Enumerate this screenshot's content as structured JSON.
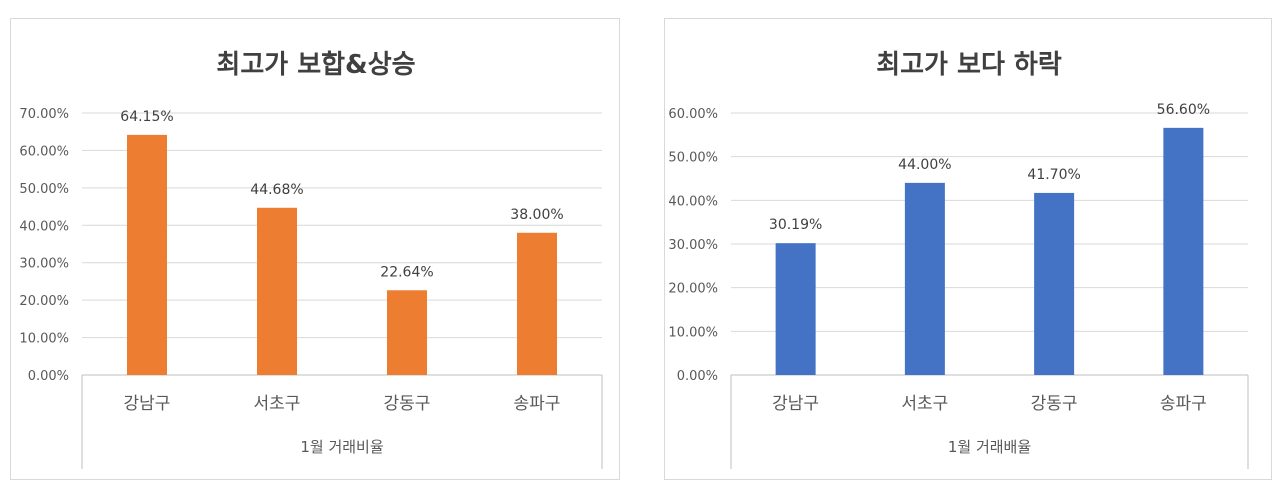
{
  "chart_data": [
    {
      "type": "bar",
      "title": "최고가 보합&상승",
      "group_label": "1월 거래비율",
      "categories": [
        "강남구",
        "서초구",
        "강동구",
        "송파구"
      ],
      "values": [
        64.15,
        44.68,
        22.64,
        38.0
      ],
      "value_labels": [
        "64.15%",
        "44.68%",
        "22.64%",
        "38.00%"
      ],
      "y_ticks": [
        "0.00%",
        "10.00%",
        "20.00%",
        "30.00%",
        "40.00%",
        "50.00%",
        "60.00%",
        "70.00%"
      ],
      "ylim": [
        0,
        70
      ],
      "bar_color": "#ED7D31",
      "grid": true,
      "legend": "none"
    },
    {
      "type": "bar",
      "title": "최고가 보다 하락",
      "group_label": "1월 거래배율",
      "categories": [
        "강남구",
        "서초구",
        "강동구",
        "송파구"
      ],
      "values": [
        30.19,
        44.0,
        41.7,
        56.6
      ],
      "value_labels": [
        "30.19%",
        "44.00%",
        "41.70%",
        "56.60%"
      ],
      "y_ticks": [
        "0.00%",
        "10.00%",
        "20.00%",
        "30.00%",
        "40.00%",
        "50.00%",
        "60.00%"
      ],
      "ylim": [
        0,
        60
      ],
      "bar_color": "#4472C4",
      "grid": true,
      "legend": "none"
    }
  ]
}
